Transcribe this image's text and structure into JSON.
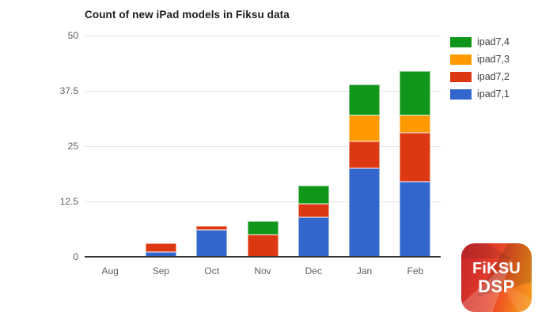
{
  "chart_data": {
    "type": "bar",
    "stacked": true,
    "title": "Count of new iPad models in Fiksu data",
    "categories": [
      "Aug",
      "Sep",
      "Oct",
      "Nov",
      "Dec",
      "Jan",
      "Feb"
    ],
    "series": [
      {
        "name": "ipad7,1",
        "color": "#3366CC",
        "values": [
          0,
          1,
          6,
          0,
          9,
          20,
          17
        ]
      },
      {
        "name": "ipad7,2",
        "color": "#DC3912",
        "values": [
          0,
          2,
          1,
          5,
          3,
          6,
          11
        ]
      },
      {
        "name": "ipad7,3",
        "color": "#FF9900",
        "values": [
          0,
          0,
          0,
          0,
          0,
          6,
          4
        ]
      },
      {
        "name": "ipad7,4",
        "color": "#109618",
        "values": [
          0,
          0,
          0,
          3,
          4,
          7,
          10
        ]
      }
    ],
    "totals_by_month": [
      0,
      3,
      7,
      8,
      16,
      39,
      42
    ],
    "xlabel": "",
    "ylabel": "",
    "yticks": [
      "0",
      "12.5",
      "25",
      "37.5",
      "50"
    ],
    "ylim": [
      0,
      50
    ],
    "grid": true,
    "legend_position": "right"
  },
  "legend": {
    "items": [
      {
        "label": "ipad7,4",
        "color": "#109618"
      },
      {
        "label": "ipad7,3",
        "color": "#FF9900"
      },
      {
        "label": "ipad7,2",
        "color": "#DC3912"
      },
      {
        "label": "ipad7,1",
        "color": "#3366CC"
      }
    ]
  },
  "axis": {
    "x_labels": [
      "Aug",
      "Sep",
      "Oct",
      "Nov",
      "Dec",
      "Jan",
      "Feb"
    ],
    "y_labels": [
      "0",
      "12.5",
      "25",
      "37.5",
      "50"
    ],
    "label_color": "#616161",
    "gridline_color": "#e6e6e6",
    "baseline_color": "#333333"
  },
  "logo": {
    "line1": "FiKSU",
    "line2": "DSP",
    "red": "#d9322a",
    "orange": "#f6a01f"
  }
}
